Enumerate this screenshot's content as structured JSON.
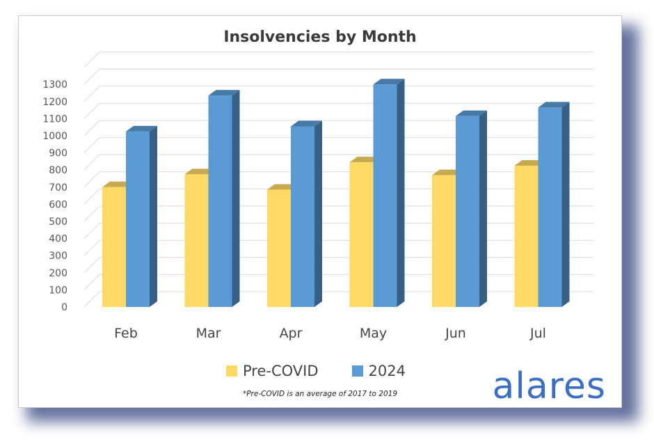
{
  "chart_data": {
    "type": "bar",
    "title": "Insolvencies by Month",
    "categories": [
      "Feb",
      "Mar",
      "Apr",
      "May",
      "Jun",
      "Jul"
    ],
    "series": [
      {
        "name": "Pre-COVID",
        "values": [
          700,
          775,
          685,
          845,
          770,
          825
        ],
        "color": "#ffd966"
      },
      {
        "name": "2024",
        "values": [
          1025,
          1235,
          1055,
          1300,
          1115,
          1165
        ],
        "color": "#5b9bd5"
      }
    ],
    "yticks": [
      0,
      100,
      200,
      300,
      400,
      500,
      600,
      700,
      800,
      900,
      1000,
      1100,
      1200,
      1300
    ],
    "ylim": [
      0,
      1400
    ],
    "grid": true,
    "legend_position": "bottom",
    "style": "3d-clustered-column"
  },
  "footnote": "*Pre-COVID is an average of 2017 to 2019",
  "logo": "alares"
}
